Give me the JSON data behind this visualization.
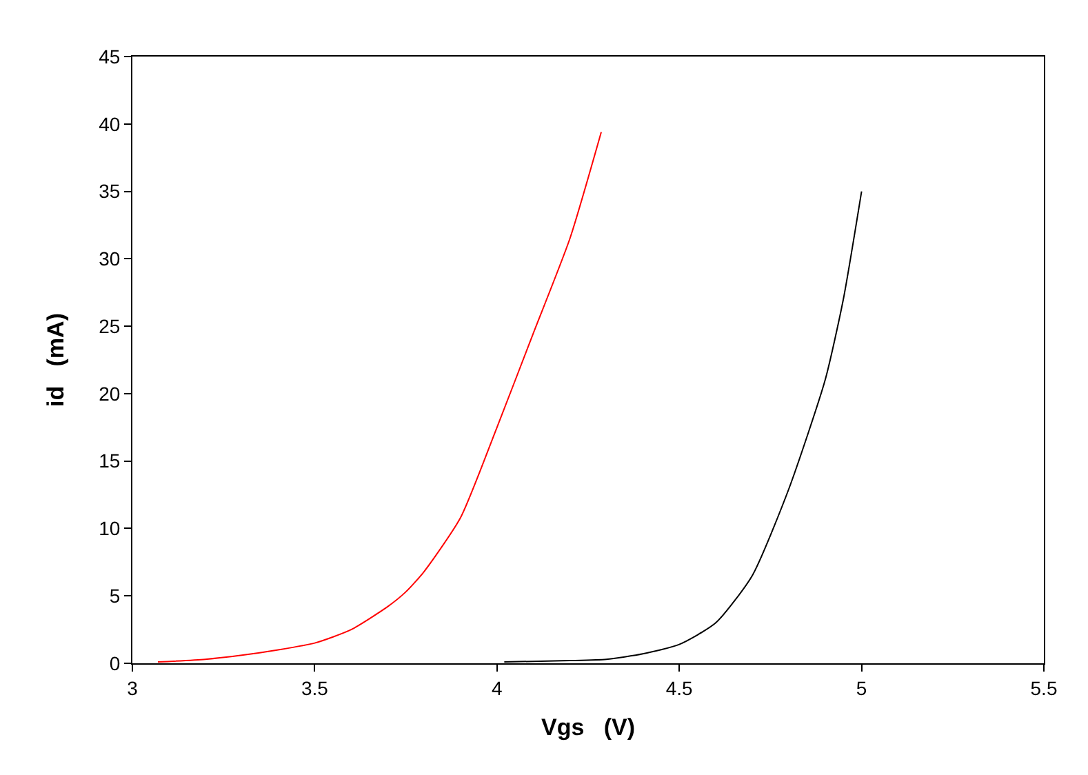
{
  "chart_data": {
    "type": "line",
    "xlabel": "Vgs   (V)",
    "ylabel": "id   (mA)",
    "xlim": [
      3,
      5.5
    ],
    "xticks": [
      3,
      3.5,
      4,
      4.5,
      5,
      5.5
    ],
    "ylim": [
      0,
      45
    ],
    "yticks": [
      0,
      5,
      10,
      15,
      20,
      25,
      30,
      35,
      40,
      45
    ],
    "grid": false,
    "series": [
      {
        "color": "#ff0000",
        "x": [
          3.07,
          3.2,
          3.3,
          3.4,
          3.5,
          3.6,
          3.7,
          3.75,
          3.8,
          3.9,
          4.0,
          4.1,
          4.2,
          4.286
        ],
        "values": [
          0.1,
          0.3,
          0.6,
          1.0,
          1.5,
          2.5,
          4.2,
          5.3,
          6.8,
          10.8,
          17.5,
          24.5,
          31.5,
          39.4
        ]
      },
      {
        "color": "#000000",
        "x": [
          4.02,
          4.2,
          4.3,
          4.4,
          4.5,
          4.6,
          4.7,
          4.8,
          4.9,
          4.95,
          5.0
        ],
        "values": [
          0.1,
          0.2,
          0.3,
          0.7,
          1.4,
          3.0,
          6.5,
          12.9,
          21,
          27,
          35
        ]
      }
    ]
  }
}
